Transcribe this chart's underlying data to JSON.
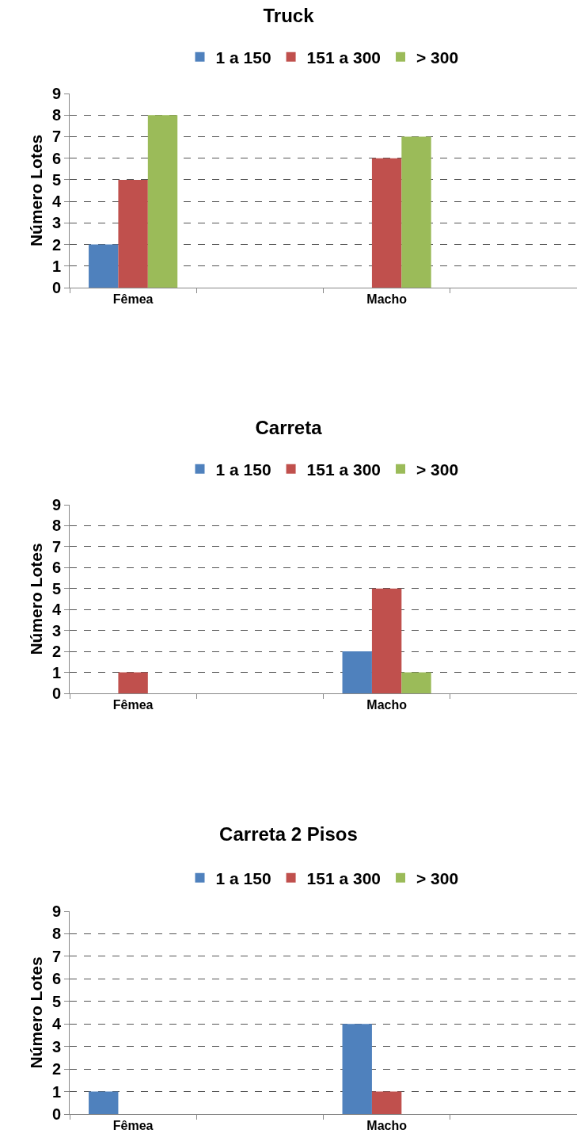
{
  "chart_data": [
    {
      "type": "bar",
      "title": "Truck",
      "ylabel": "Número Lotes",
      "categories": [
        "Fêmea",
        null,
        "Macho",
        null
      ],
      "series": [
        {
          "name": "1 a 150",
          "color": "#4f81bd",
          "values": [
            2,
            null,
            0,
            null
          ]
        },
        {
          "name": "151 a 300",
          "color": "#c0504d",
          "values": [
            5,
            null,
            6,
            null
          ]
        },
        {
          "name": "> 300",
          "color": "#9bbb59",
          "values": [
            8,
            null,
            7,
            null
          ]
        }
      ],
      "ylim": [
        0,
        9
      ],
      "yticks": [
        0,
        1,
        2,
        3,
        4,
        5,
        6,
        7,
        8,
        9
      ],
      "grid": "y",
      "legend": "top"
    },
    {
      "type": "bar",
      "title": "Carreta",
      "ylabel": "Número Lotes",
      "categories": [
        "Fêmea",
        null,
        "Macho",
        null
      ],
      "series": [
        {
          "name": "1 a 150",
          "color": "#4f81bd",
          "values": [
            0,
            null,
            2,
            null
          ]
        },
        {
          "name": "151 a 300",
          "color": "#c0504d",
          "values": [
            1,
            null,
            5,
            null
          ]
        },
        {
          "name": "> 300",
          "color": "#9bbb59",
          "values": [
            0,
            null,
            1,
            null
          ]
        }
      ],
      "ylim": [
        0,
        9
      ],
      "yticks": [
        0,
        1,
        2,
        3,
        4,
        5,
        6,
        7,
        8,
        9
      ],
      "grid": "y",
      "legend": "top"
    },
    {
      "type": "bar",
      "title": "Carreta 2 Pisos",
      "ylabel": "Número Lotes",
      "categories": [
        "Fêmea",
        null,
        "Macho",
        null
      ],
      "series": [
        {
          "name": "1 a 150",
          "color": "#4f81bd",
          "values": [
            1,
            null,
            4,
            null
          ]
        },
        {
          "name": "151 a 300",
          "color": "#c0504d",
          "values": [
            0,
            null,
            1,
            null
          ]
        },
        {
          "name": "> 300",
          "color": "#9bbb59",
          "values": [
            0,
            null,
            0,
            null
          ]
        }
      ],
      "ylim": [
        0,
        9
      ],
      "yticks": [
        0,
        1,
        2,
        3,
        4,
        5,
        6,
        7,
        8,
        9
      ],
      "grid": "y",
      "legend": "top"
    }
  ]
}
